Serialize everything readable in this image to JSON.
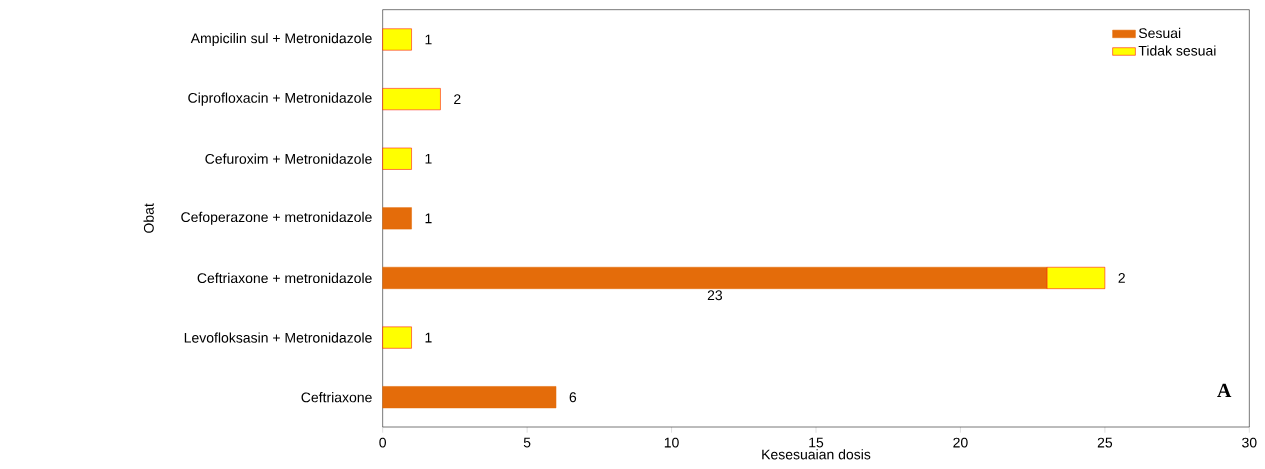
{
  "chart_data": {
    "type": "bar",
    "orientation": "horizontal",
    "stacked": true,
    "xlabel": "Kesesuaian dosis",
    "ylabel": "Obat",
    "categories": [
      "Ampicilin sul + Metronidazole",
      "Ciprofloxacin + Metronidazole",
      "Cefuroxim + Metronidazole",
      "Cefoperazone  + metronidazole",
      "Ceftriaxone  + metronidazole",
      "Levofloksasin + Metronidazole",
      "Ceftriaxone"
    ],
    "series": [
      {
        "name": "Sesuai",
        "color": "#e46c0a",
        "values": [
          null,
          null,
          null,
          1,
          23,
          null,
          6
        ]
      },
      {
        "name": "Tidak sesuai",
        "color": "#ffff00",
        "values": [
          1,
          2,
          1,
          null,
          2,
          1,
          null
        ]
      }
    ],
    "xlim": [
      0,
      30
    ],
    "xticks": [
      0,
      5,
      10,
      15,
      20,
      25,
      30
    ],
    "data_labels": true,
    "legend": "top right",
    "grid": false,
    "annotations": [
      "A"
    ]
  }
}
